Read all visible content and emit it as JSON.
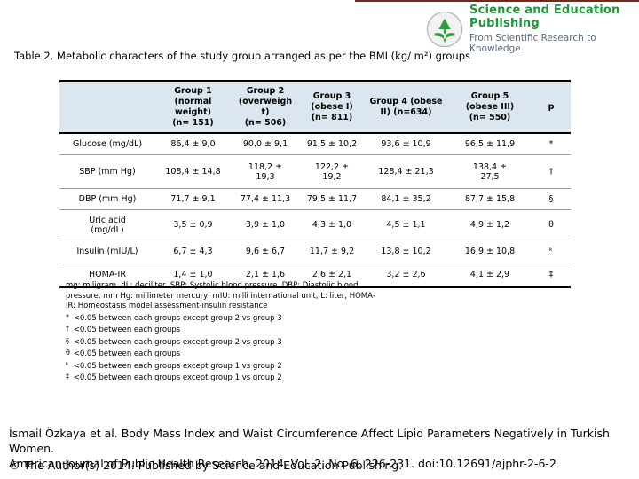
{
  "logo": {
    "publisher": "Science and Education Publishing",
    "tagline": "From Scientific Research to Knowledge"
  },
  "accent_colors": {
    "logo_green": "#1f9639",
    "header_blue": "#dce6f1",
    "top_bar_maroon": "#7b241c"
  },
  "title": "Table 2. Metabolic characters of the study group arranged as per the BMI (kg/ m²) groups",
  "table": {
    "columns": [
      "",
      "Group 1\n(normal\nweight)\n(n= 151)",
      "Group 2\n(overweigh\nt)\n(n= 506)",
      "Group 3\n(obese I)\n(n= 811)",
      "Group 4 (obese\nII) (n=634)",
      "Group 5\n(obese III)\n(n= 550)",
      "p"
    ],
    "rows": [
      {
        "label": "Glucose (mg/dL)",
        "values": [
          "86,4 ± 9,0",
          "90,0 ± 9,1",
          "91,5 ± 10,2",
          "93,6 ± 10,9",
          "96,5 ± 11,9"
        ],
        "p": "*"
      },
      {
        "label": "SBP (mm Hg)",
        "values": [
          "108,4 ± 14,8",
          "118,2 ±\n19,3",
          "122,2 ±\n19,2",
          "128,4 ± 21,3",
          "138,4 ±\n27,5"
        ],
        "p": "†"
      },
      {
        "label": "DBP (mm Hg)",
        "values": [
          "71,7 ± 9,1",
          "77,4 ± 11,3",
          "79,5 ± 11,7",
          "84,1 ± 35,2",
          "87,7 ± 15,8"
        ],
        "p": "§"
      },
      {
        "label": "Uric acid\n(mg/dL)",
        "values": [
          "3,5 ± 0,9",
          "3,9 ± 1,0",
          "4,3 ± 1,0",
          "4,5 ± 1,1",
          "4,9 ± 1,2"
        ],
        "p": "θ"
      },
      {
        "label": "Insulin (mIU/L)",
        "values": [
          "6,7 ± 4,3",
          "9,6 ± 6,7",
          "11,7 ± 9,2",
          "13,8 ± 10,2",
          "16,9 ± 10,8"
        ],
        "p": "ᵏ"
      },
      {
        "label": "HOMA-IR",
        "values": [
          "1,4 ± 1,0",
          "2,1 ± 1,6",
          "2,6 ± 2,1",
          "3,2 ± 2,6",
          "4,1 ± 2,9"
        ],
        "p": "‡"
      }
    ]
  },
  "footnotes": {
    "abbreviations": "mg: miligram, dL: deciliter, SBP: Systolic blood pressure, DBP: Diastolic blood pressure, mm Hg: millimeter mercury, mIU: milli international unit, L: liter, HOMA-IR: Homeostasis model assessment-insulin resistance",
    "markers": [
      {
        "symbol": "*",
        "text": "<0.05 between each groups except group 2 vs group 3"
      },
      {
        "symbol": "†",
        "text": "<0.05 between each groups"
      },
      {
        "symbol": "§",
        "text": "<0.05 between each groups except group 2 vs group 3"
      },
      {
        "symbol": "θ",
        "text": "<0.05 between each groups"
      },
      {
        "symbol": "ᵏ",
        "text": "<0.05 between each groups except group 1 vs group 2"
      },
      {
        "symbol": "‡",
        "text": "<0.05 between each groups except group 1 vs group 2"
      }
    ]
  },
  "citation": "İsmail Özkaya et al. Body Mass Index and Waist Circumference Affect Lipid Parameters Negatively in Turkish Women.\nAmerican Journal of Public Health Research, 2014, Vol. 2, No. 6, 226-231. doi:10.12691/ajphr-2-6-2",
  "copyright": "© The Author(s) 2014. Published by Science and Education Publishing."
}
